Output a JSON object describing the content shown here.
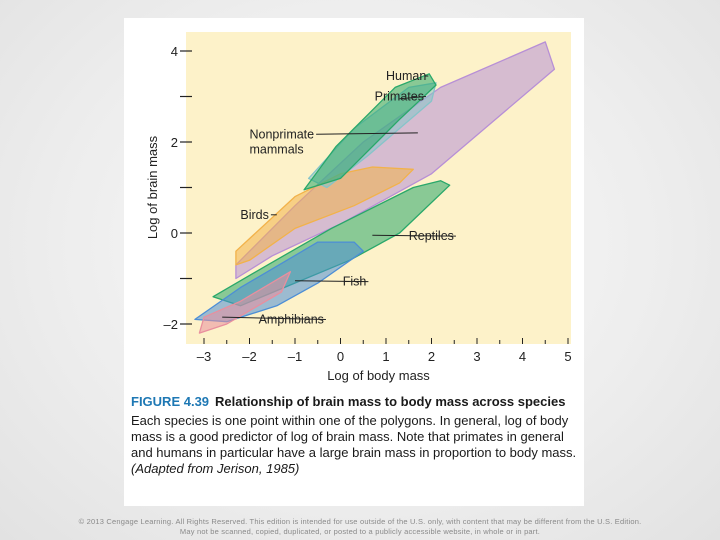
{
  "colors": {
    "plot_background": "#fdf2c9",
    "human": "#29a86a",
    "primates": "#86c4c9",
    "nonprimate_mammals": "#b78fd6",
    "birds": "#f2b24a",
    "reptiles": "#29a86a",
    "fish": "#4c8ed6",
    "amphibians": "#e98f9e",
    "figure_label": "#1e78b4"
  },
  "chart_data": {
    "type": "area",
    "xlabel": "Log of body mass",
    "ylabel": "Log of brain mass",
    "xlim": [
      -3.4,
      5
    ],
    "ylim": [
      -2.4,
      4.3
    ],
    "x_ticks": [
      "–3",
      "–2",
      "–1",
      "0",
      "1",
      "2",
      "3",
      "4",
      "5"
    ],
    "y_ticks": [
      "4",
      "2",
      "0",
      "–2"
    ],
    "y_tick_values": [
      4,
      2,
      0,
      -2
    ],
    "y_minor_ticks": [
      3,
      1,
      -1
    ],
    "series": [
      {
        "name": "Nonprimate mammals",
        "color_key": "nonprimate_mammals",
        "points": [
          [
            -2.3,
            -1.0
          ],
          [
            -2.3,
            -0.7
          ],
          [
            -1.0,
            0.6
          ],
          [
            0.5,
            2.0
          ],
          [
            2.2,
            3.2
          ],
          [
            4.5,
            4.2
          ],
          [
            4.7,
            3.6
          ],
          [
            2.0,
            1.3
          ],
          [
            0.0,
            0.2
          ],
          [
            -1.5,
            -0.5
          ]
        ]
      },
      {
        "name": "Birds",
        "color_key": "birds",
        "points": [
          [
            -2.3,
            -0.7
          ],
          [
            -2.3,
            -0.4
          ],
          [
            -1.0,
            0.8
          ],
          [
            0.0,
            1.3
          ],
          [
            0.7,
            1.45
          ],
          [
            1.6,
            1.4
          ],
          [
            1.3,
            1.1
          ],
          [
            0.3,
            0.6
          ],
          [
            -1.0,
            0.1
          ],
          [
            -2.0,
            -0.6
          ]
        ]
      },
      {
        "name": "Reptiles",
        "color_key": "reptiles",
        "points": [
          [
            -2.8,
            -1.4
          ],
          [
            -1.6,
            -0.7
          ],
          [
            -0.2,
            0.1
          ],
          [
            1.6,
            1.0
          ],
          [
            2.2,
            1.15
          ],
          [
            2.4,
            1.05
          ],
          [
            1.3,
            0.0
          ],
          [
            0.2,
            -0.6
          ],
          [
            -2.2,
            -1.6
          ]
        ]
      },
      {
        "name": "Fish",
        "color_key": "fish",
        "points": [
          [
            -3.2,
            -1.9
          ],
          [
            -2.2,
            -1.2
          ],
          [
            -0.5,
            -0.2
          ],
          [
            0.3,
            -0.2
          ],
          [
            0.5,
            -0.4
          ],
          [
            -0.5,
            -1.1
          ],
          [
            -1.4,
            -1.6
          ],
          [
            -2.5,
            -1.95
          ]
        ]
      },
      {
        "name": "Amphibians",
        "color_key": "amphibians",
        "points": [
          [
            -3.1,
            -2.2
          ],
          [
            -3.0,
            -1.85
          ],
          [
            -2.2,
            -1.5
          ],
          [
            -1.1,
            -0.85
          ],
          [
            -1.3,
            -1.3
          ],
          [
            -2.5,
            -2.0
          ]
        ]
      },
      {
        "name": "Primates",
        "color_key": "primates",
        "points": [
          [
            -0.7,
            1.2
          ],
          [
            0.3,
            2.3
          ],
          [
            1.5,
            3.2
          ],
          [
            2.1,
            3.3
          ],
          [
            2.0,
            2.9
          ],
          [
            0.6,
            1.7
          ],
          [
            -0.3,
            1.0
          ]
        ]
      },
      {
        "name": "Human",
        "color_key": "human",
        "points": [
          [
            -0.8,
            0.95
          ],
          [
            -0.1,
            1.9
          ],
          [
            1.2,
            3.2
          ],
          [
            1.95,
            3.5
          ],
          [
            2.1,
            3.25
          ],
          [
            1.3,
            2.5
          ],
          [
            0.0,
            1.2
          ]
        ]
      }
    ],
    "annotations": [
      {
        "text": "Human",
        "at": [
          1.0,
          3.45
        ],
        "target": [
          1.85,
          3.45
        ],
        "anchor": "start"
      },
      {
        "text": "Primates",
        "at": [
          0.75,
          3.0
        ],
        "target": [
          1.3,
          2.95
        ],
        "anchor": "start"
      },
      {
        "text": "Nonprimate",
        "at": [
          -2.0,
          2.17
        ],
        "target": [
          1.7,
          2.2
        ],
        "anchor": "start"
      },
      {
        "text": "mammals",
        "at": [
          -2.0,
          1.83
        ],
        "anchor": "start"
      },
      {
        "text": "Birds",
        "at": [
          -2.2,
          0.4
        ],
        "target": [
          -1.4,
          0.4
        ],
        "anchor": "start"
      },
      {
        "text": "Reptiles",
        "at": [
          1.5,
          -0.07
        ],
        "target": [
          0.7,
          -0.05
        ],
        "anchor": "start"
      },
      {
        "text": "Fish",
        "at": [
          0.05,
          -1.07
        ],
        "target": [
          -1.0,
          -1.05
        ],
        "anchor": "start"
      },
      {
        "text": "Amphibians",
        "at": [
          -1.8,
          -1.9
        ],
        "target": [
          -2.6,
          -1.85
        ],
        "anchor": "start"
      }
    ],
    "grid": false,
    "legend": "none"
  },
  "caption": {
    "label": "FIGURE 4.39",
    "title": "Relationship of brain mass to body mass across species",
    "body": "Each species is one point within one of the polygons. In general, log of body mass is a good predictor of log of brain mass. Note that primates in general and humans in particular have a large brain mass in proportion to body mass.",
    "credit": "(Adapted from Jerison, 1985)"
  },
  "footer": {
    "line1": "© 2013 Cengage Learning. All Rights Reserved. This edition is intended for use outside of the U.S. only, with content that may be different from the U.S. Edition.",
    "line2": "May not be scanned, copied, duplicated, or posted to a publicly accessible website, in whole or in part."
  }
}
